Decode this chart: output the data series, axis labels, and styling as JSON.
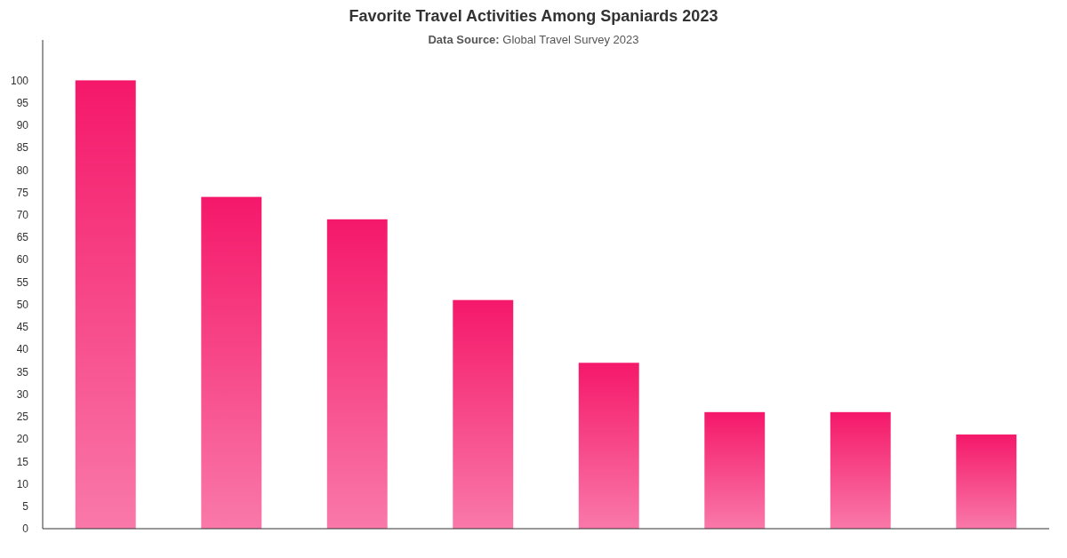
{
  "chart_data": {
    "type": "bar",
    "title": "Favorite Travel Activities Among Spaniards 2023",
    "subtitle": "Data Source: Global Travel Survey 2023",
    "categories": [
      null,
      null,
      null,
      null,
      null,
      null,
      null,
      null
    ],
    "values": [
      100,
      74,
      69,
      51,
      37,
      26,
      26,
      21
    ],
    "color": "#f5186a",
    "ylim": [
      0,
      109
    ],
    "yticks": [
      0,
      5,
      10,
      15,
      20,
      25,
      30,
      35,
      40,
      45,
      50,
      55,
      60,
      65,
      70,
      75,
      80,
      85,
      90,
      95,
      100
    ],
    "grid": false
  }
}
